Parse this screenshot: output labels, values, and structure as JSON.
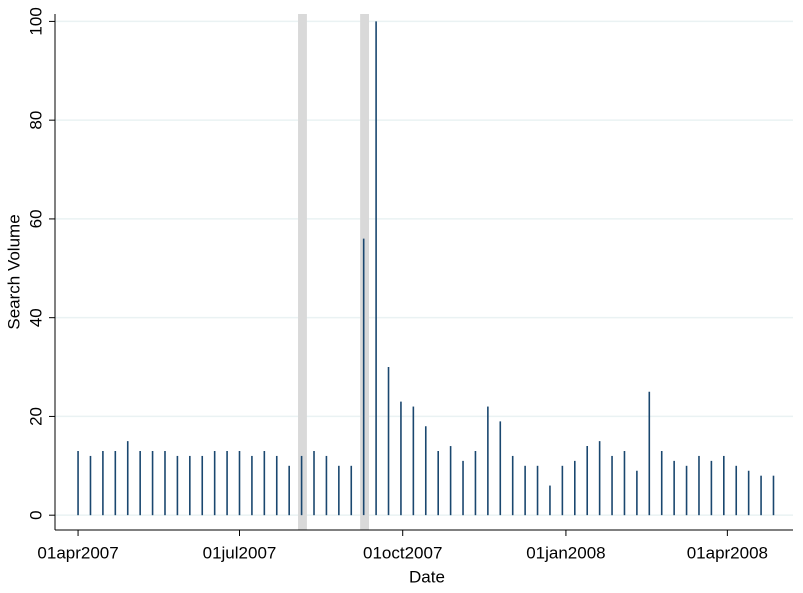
{
  "chart_data": {
    "type": "spike",
    "x_label": "Date",
    "y_label": "Search Volume",
    "x": [
      "2007-04-01",
      "2007-04-08",
      "2007-04-15",
      "2007-04-22",
      "2007-04-29",
      "2007-05-06",
      "2007-05-13",
      "2007-05-20",
      "2007-05-27",
      "2007-06-03",
      "2007-06-10",
      "2007-06-17",
      "2007-06-24",
      "2007-07-01",
      "2007-07-08",
      "2007-07-15",
      "2007-07-22",
      "2007-07-29",
      "2007-08-05",
      "2007-08-12",
      "2007-08-19",
      "2007-08-26",
      "2007-09-02",
      "2007-09-09",
      "2007-09-16",
      "2007-09-23",
      "2007-09-30",
      "2007-10-07",
      "2007-10-14",
      "2007-10-21",
      "2007-10-28",
      "2007-11-04",
      "2007-11-11",
      "2007-11-18",
      "2007-11-25",
      "2007-12-02",
      "2007-12-09",
      "2007-12-16",
      "2007-12-23",
      "2007-12-30",
      "2008-01-06",
      "2008-01-13",
      "2008-01-20",
      "2008-01-27",
      "2008-02-03",
      "2008-02-10",
      "2008-02-17",
      "2008-02-24",
      "2008-03-02",
      "2008-03-09",
      "2008-03-16",
      "2008-03-23",
      "2008-03-30",
      "2008-04-06",
      "2008-04-13",
      "2008-04-20",
      "2008-04-27"
    ],
    "values": [
      13,
      12,
      13,
      13,
      15,
      13,
      13,
      13,
      12,
      12,
      12,
      13,
      13,
      13,
      12,
      13,
      12,
      10,
      12,
      13,
      12,
      10,
      10,
      56,
      100,
      30,
      23,
      22,
      18,
      13,
      14,
      11,
      13,
      22,
      19,
      12,
      10,
      10,
      6,
      10,
      11,
      14,
      15,
      12,
      13,
      9,
      25,
      13,
      11,
      10,
      12,
      11,
      12,
      10,
      9,
      8,
      8
    ],
    "color": "#1a476f",
    "bands": [
      {
        "start": "2007-08-03",
        "end": "2007-08-08"
      },
      {
        "start": "2007-09-07",
        "end": "2007-09-12"
      }
    ],
    "band_color": "#d9d9d9",
    "xlim": [
      "2007-03-19",
      "2008-05-08"
    ],
    "xticks": [
      {
        "value": "2007-04-01",
        "label": "01apr2007"
      },
      {
        "value": "2007-07-01",
        "label": "01jul2007"
      },
      {
        "value": "2007-10-01",
        "label": "01oct2007"
      },
      {
        "value": "2008-01-01",
        "label": "01jan2008"
      },
      {
        "value": "2008-04-01",
        "label": "01apr2008"
      }
    ],
    "ylim": [
      -3,
      101.5
    ],
    "yticks": [
      0,
      20,
      40,
      60,
      80,
      100
    ],
    "grid": true
  }
}
